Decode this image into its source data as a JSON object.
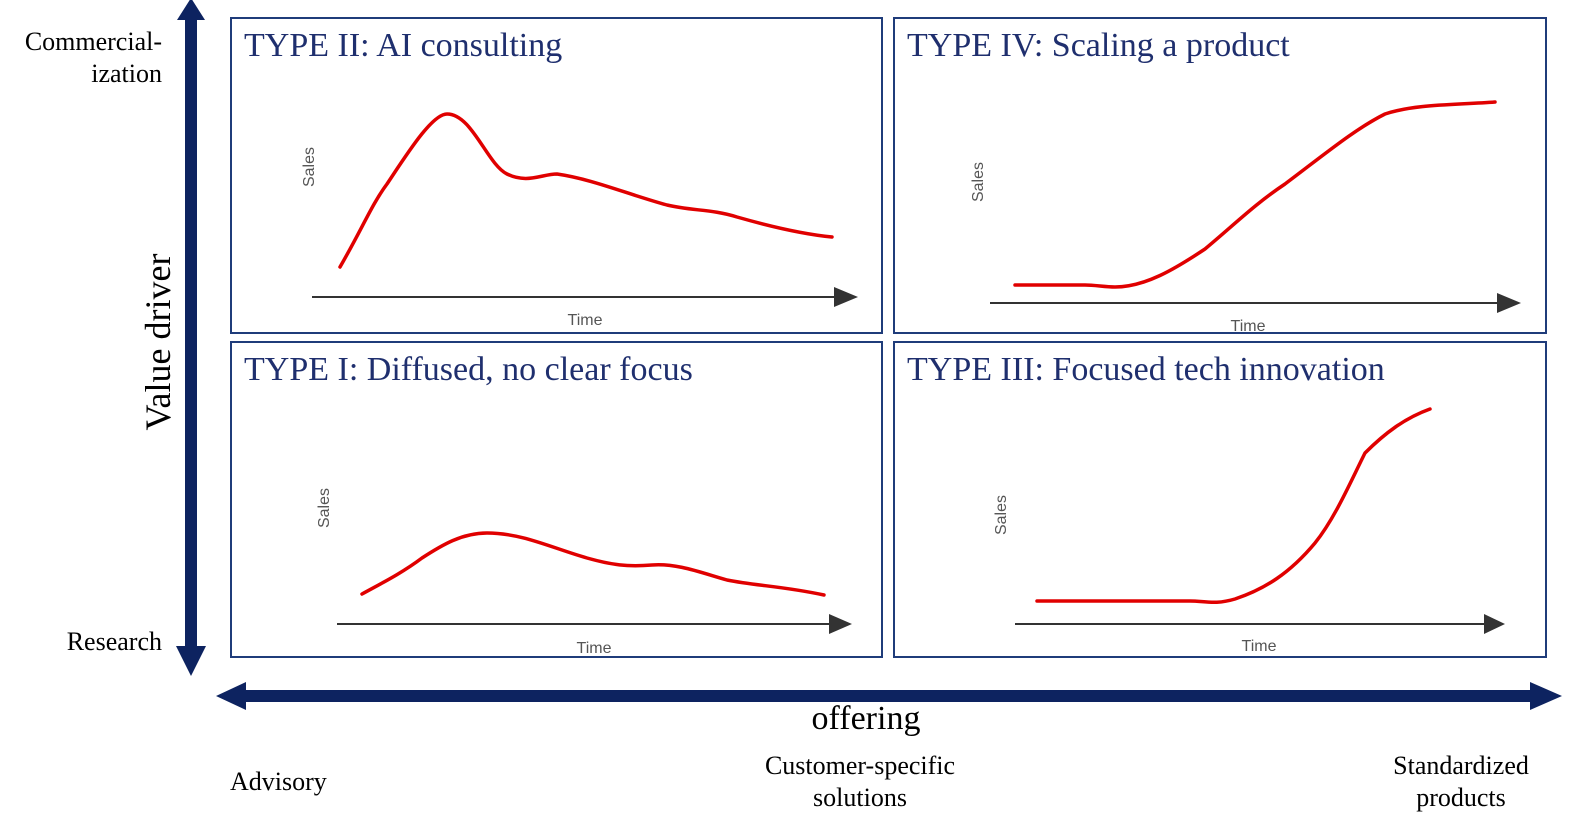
{
  "axes": {
    "y_title": "Value driver",
    "y_top": "Commercial-\nization",
    "y_bottom": "Research",
    "x_title": "offering",
    "x_left": "Advisory",
    "x_middle": "Customer-specific\nsolutions",
    "x_right": "Standardized\nproducts"
  },
  "colors": {
    "axis": "#0d2360",
    "border": "#1f3c7a",
    "curve": "#e00000",
    "title": "#1f2f6e"
  },
  "quadrants": {
    "q2": {
      "title": "TYPE II: AI consulting",
      "ylabel": "Sales",
      "xlabel": "Time"
    },
    "q4": {
      "title": "TYPE IV: Scaling a product",
      "ylabel": "Sales",
      "xlabel": "Time"
    },
    "q1": {
      "title": "TYPE I: Diffused, no clear focus",
      "ylabel": "Sales",
      "xlabel": "Time"
    },
    "q3": {
      "title": "TYPE III: Focused tech innovation",
      "ylabel": "Sales",
      "xlabel": "Time"
    }
  }
}
